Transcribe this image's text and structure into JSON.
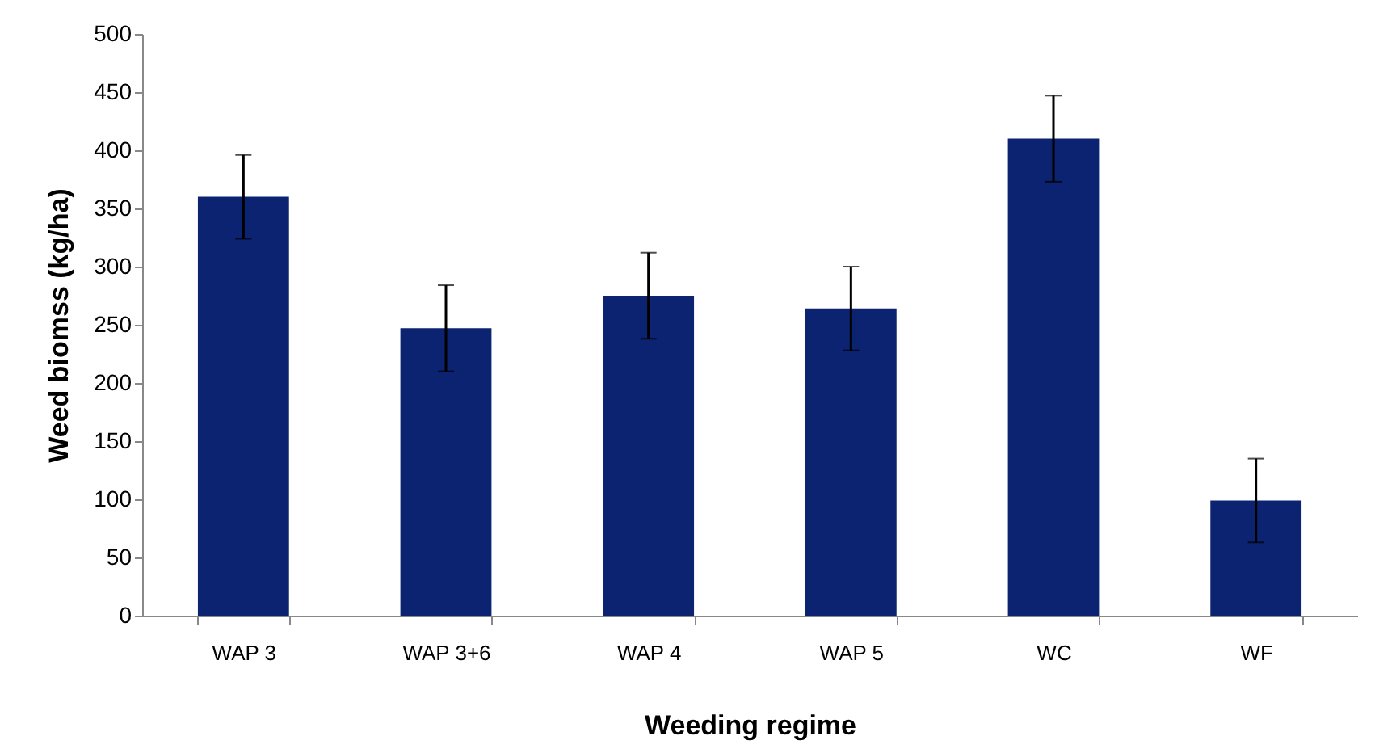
{
  "chart_data": {
    "type": "bar",
    "xlabel": "Weeding regime",
    "ylabel": "Weed biomss (kg/ha)",
    "categories": [
      "WAP 3",
      "WAP 3+6",
      "WAP 4",
      "WAP 5",
      "WC",
      "WF"
    ],
    "series": [
      {
        "color": "#0b2370",
        "values": [
          360,
          247,
          275,
          264,
          410,
          99
        ],
        "errors": [
          36,
          37,
          37,
          36,
          37,
          36
        ]
      }
    ],
    "ylim": [
      0,
      500
    ],
    "yticks": [
      0,
      50,
      100,
      150,
      200,
      250,
      300,
      350,
      400,
      450,
      500
    ],
    "grid": false
  }
}
